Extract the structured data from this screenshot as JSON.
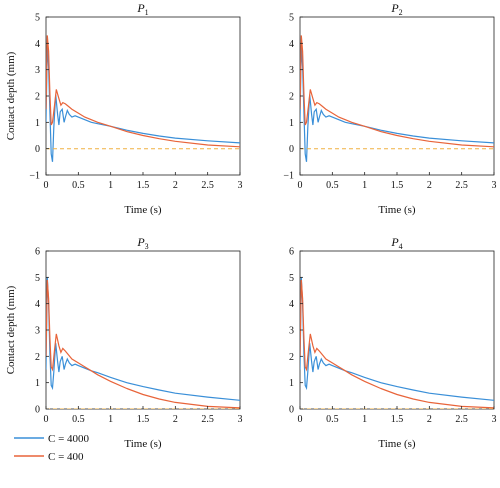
{
  "colors": {
    "blue": "#3a8fd8",
    "orange": "#e8643a",
    "zero_line": "#f0b040"
  },
  "legend": [
    {
      "label": "C = 4000",
      "color": "#3a8fd8"
    },
    {
      "label": "C = 400",
      "color": "#e8643a"
    }
  ],
  "chart_data": [
    {
      "type": "line",
      "title": "P",
      "title_sub": "1",
      "xlabel": "Time (s)",
      "ylabel": "Contact depth (mm)",
      "xlim": [
        0,
        3
      ],
      "ylim": [
        -1,
        5
      ],
      "xticks": [
        0,
        0.5,
        1,
        1.5,
        2,
        2.5,
        3
      ],
      "xtick_labels": [
        "0",
        "0.5",
        "1",
        "1.5",
        "2",
        "2.5",
        "3"
      ],
      "yticks": [
        -1,
        0,
        1,
        2,
        3,
        4,
        5
      ],
      "ytick_labels": [
        "−1",
        "0",
        "1",
        "2",
        "3",
        "4",
        "5"
      ],
      "grid": false,
      "series": [
        {
          "name": "C = 4000",
          "color": "#3a8fd8",
          "x": [
            0,
            0.02,
            0.04,
            0.06,
            0.08,
            0.1,
            0.12,
            0.15,
            0.18,
            0.2,
            0.22,
            0.25,
            0.28,
            0.3,
            0.33,
            0.36,
            0.4,
            0.45,
            0.5,
            0.6,
            0.7,
            0.8,
            1.0,
            1.25,
            1.5,
            1.75,
            2.0,
            2.5,
            3.0
          ],
          "y": [
            1.0,
            3.9,
            3.1,
            1.4,
            -0.2,
            -0.5,
            0.8,
            2.05,
            1.3,
            0.9,
            1.4,
            1.5,
            1.0,
            1.2,
            1.45,
            1.3,
            1.2,
            1.25,
            1.2,
            1.1,
            1.0,
            0.95,
            0.85,
            0.7,
            0.58,
            0.48,
            0.4,
            0.3,
            0.22
          ]
        },
        {
          "name": "C = 400",
          "color": "#e8643a",
          "x": [
            0,
            0.02,
            0.04,
            0.06,
            0.08,
            0.1,
            0.13,
            0.16,
            0.2,
            0.23,
            0.26,
            0.3,
            0.35,
            0.4,
            0.5,
            0.6,
            0.7,
            0.8,
            1.0,
            1.25,
            1.5,
            1.75,
            2.0,
            2.5,
            3.0
          ],
          "y": [
            1.5,
            4.3,
            3.7,
            2.1,
            0.9,
            1.0,
            1.6,
            2.25,
            1.9,
            1.65,
            1.75,
            1.7,
            1.6,
            1.5,
            1.35,
            1.2,
            1.1,
            1.0,
            0.85,
            0.65,
            0.5,
            0.38,
            0.28,
            0.14,
            0.07
          ]
        },
        {
          "name": "",
          "color": "#f0b040",
          "dashed": true,
          "x": [
            0,
            3
          ],
          "y": [
            0,
            0
          ]
        }
      ]
    },
    {
      "type": "line",
      "title": "P",
      "title_sub": "2",
      "xlabel": "Time (s)",
      "ylabel": "",
      "xlim": [
        0,
        3
      ],
      "ylim": [
        -1,
        5
      ],
      "xticks": [
        0,
        0.5,
        1,
        1.5,
        2,
        2.5,
        3
      ],
      "xtick_labels": [
        "0",
        "0.5",
        "1",
        "1.5",
        "2",
        "2.5",
        "3"
      ],
      "yticks": [
        -1,
        0,
        1,
        2,
        3,
        4,
        5
      ],
      "ytick_labels": [
        "−1",
        "0",
        "1",
        "2",
        "3",
        "4",
        "5"
      ],
      "grid": false,
      "series": [
        {
          "name": "C = 4000",
          "color": "#3a8fd8",
          "x": [
            0,
            0.02,
            0.04,
            0.06,
            0.08,
            0.1,
            0.12,
            0.15,
            0.18,
            0.2,
            0.22,
            0.25,
            0.28,
            0.3,
            0.33,
            0.36,
            0.4,
            0.45,
            0.5,
            0.6,
            0.7,
            0.8,
            1.0,
            1.25,
            1.5,
            1.75,
            2.0,
            2.5,
            3.0
          ],
          "y": [
            1.0,
            3.9,
            3.1,
            1.4,
            -0.2,
            -0.5,
            0.8,
            2.05,
            1.3,
            0.9,
            1.4,
            1.5,
            1.0,
            1.2,
            1.45,
            1.3,
            1.2,
            1.25,
            1.2,
            1.1,
            1.0,
            0.95,
            0.85,
            0.7,
            0.58,
            0.48,
            0.4,
            0.3,
            0.22
          ]
        },
        {
          "name": "C = 400",
          "color": "#e8643a",
          "x": [
            0,
            0.02,
            0.04,
            0.06,
            0.08,
            0.1,
            0.13,
            0.16,
            0.2,
            0.23,
            0.26,
            0.3,
            0.35,
            0.4,
            0.5,
            0.6,
            0.7,
            0.8,
            1.0,
            1.25,
            1.5,
            1.75,
            2.0,
            2.5,
            3.0
          ],
          "y": [
            1.5,
            4.3,
            3.7,
            2.1,
            0.9,
            1.0,
            1.6,
            2.25,
            1.9,
            1.65,
            1.75,
            1.7,
            1.6,
            1.5,
            1.35,
            1.2,
            1.1,
            1.0,
            0.85,
            0.65,
            0.5,
            0.38,
            0.28,
            0.14,
            0.07
          ]
        },
        {
          "name": "",
          "color": "#f0b040",
          "dashed": true,
          "x": [
            0,
            3
          ],
          "y": [
            0,
            0
          ]
        }
      ]
    },
    {
      "type": "line",
      "title": "P",
      "title_sub": "3",
      "xlabel": "Time (s)",
      "ylabel": "Contact depth (mm)",
      "xlim": [
        0,
        3
      ],
      "ylim": [
        0,
        6
      ],
      "xticks": [
        0,
        0.5,
        1,
        1.5,
        2,
        2.5,
        3
      ],
      "xtick_labels": [
        "0",
        "0.5",
        "1",
        "1.5",
        "2",
        "2.5",
        "3"
      ],
      "yticks": [
        0,
        1,
        2,
        3,
        4,
        5,
        6
      ],
      "ytick_labels": [
        "0",
        "1",
        "2",
        "3",
        "4",
        "5",
        "6"
      ],
      "grid": false,
      "series": [
        {
          "name": "C = 4000",
          "color": "#3a8fd8",
          "x": [
            0,
            0.02,
            0.04,
            0.06,
            0.08,
            0.1,
            0.12,
            0.15,
            0.18,
            0.2,
            0.22,
            0.25,
            0.28,
            0.3,
            0.33,
            0.36,
            0.4,
            0.45,
            0.5,
            0.6,
            0.7,
            0.8,
            1.0,
            1.25,
            1.5,
            1.75,
            2.0,
            2.5,
            3.0
          ],
          "y": [
            1.5,
            5.0,
            4.0,
            2.1,
            0.9,
            0.8,
            1.4,
            2.5,
            1.8,
            1.4,
            1.8,
            2.0,
            1.5,
            1.7,
            1.9,
            1.75,
            1.65,
            1.7,
            1.65,
            1.55,
            1.45,
            1.38,
            1.2,
            1.0,
            0.85,
            0.72,
            0.6,
            0.45,
            0.33
          ]
        },
        {
          "name": "C = 400",
          "color": "#e8643a",
          "x": [
            0,
            0.02,
            0.04,
            0.06,
            0.08,
            0.1,
            0.13,
            0.16,
            0.2,
            0.23,
            0.26,
            0.3,
            0.35,
            0.4,
            0.5,
            0.6,
            0.7,
            0.8,
            1.0,
            1.25,
            1.5,
            1.75,
            2.0,
            2.5,
            3.0
          ],
          "y": [
            2.0,
            4.9,
            4.2,
            2.7,
            1.6,
            1.5,
            2.2,
            2.85,
            2.4,
            2.15,
            2.3,
            2.2,
            2.05,
            1.9,
            1.75,
            1.6,
            1.45,
            1.3,
            1.05,
            0.78,
            0.55,
            0.38,
            0.25,
            0.1,
            0.04
          ]
        },
        {
          "name": "",
          "color": "#f0b040",
          "dashed": true,
          "x": [
            0,
            3
          ],
          "y": [
            0,
            0
          ]
        }
      ]
    },
    {
      "type": "line",
      "title": "P",
      "title_sub": "4",
      "xlabel": "Time (s)",
      "ylabel": "",
      "xlim": [
        0,
        3
      ],
      "ylim": [
        0,
        6
      ],
      "xticks": [
        0,
        0.5,
        1,
        1.5,
        2,
        2.5,
        3
      ],
      "xtick_labels": [
        "0",
        "0.5",
        "1",
        "1.5",
        "2",
        "2.5",
        "3"
      ],
      "yticks": [
        0,
        1,
        2,
        3,
        4,
        5,
        6
      ],
      "ytick_labels": [
        "0",
        "1",
        "2",
        "3",
        "4",
        "5",
        "6"
      ],
      "grid": false,
      "series": [
        {
          "name": "C = 4000",
          "color": "#3a8fd8",
          "x": [
            0,
            0.02,
            0.04,
            0.06,
            0.08,
            0.1,
            0.12,
            0.15,
            0.18,
            0.2,
            0.22,
            0.25,
            0.28,
            0.3,
            0.33,
            0.36,
            0.4,
            0.45,
            0.5,
            0.6,
            0.7,
            0.8,
            1.0,
            1.25,
            1.5,
            1.75,
            2.0,
            2.5,
            3.0
          ],
          "y": [
            1.5,
            5.0,
            4.0,
            2.1,
            0.9,
            0.8,
            1.4,
            2.5,
            1.8,
            1.4,
            1.8,
            2.0,
            1.5,
            1.7,
            1.9,
            1.75,
            1.65,
            1.7,
            1.65,
            1.55,
            1.45,
            1.38,
            1.2,
            1.0,
            0.85,
            0.72,
            0.6,
            0.45,
            0.33
          ]
        },
        {
          "name": "C = 400",
          "color": "#e8643a",
          "x": [
            0,
            0.02,
            0.04,
            0.06,
            0.08,
            0.1,
            0.13,
            0.16,
            0.2,
            0.23,
            0.26,
            0.3,
            0.35,
            0.4,
            0.5,
            0.6,
            0.7,
            0.8,
            1.0,
            1.25,
            1.5,
            1.75,
            2.0,
            2.5,
            3.0
          ],
          "y": [
            2.0,
            4.9,
            4.2,
            2.7,
            1.6,
            1.5,
            2.2,
            2.85,
            2.4,
            2.15,
            2.3,
            2.2,
            2.05,
            1.9,
            1.75,
            1.6,
            1.45,
            1.3,
            1.05,
            0.78,
            0.55,
            0.38,
            0.25,
            0.1,
            0.04
          ]
        },
        {
          "name": "",
          "color": "#f0b040",
          "dashed": true,
          "x": [
            0,
            3
          ],
          "y": [
            0,
            0
          ]
        }
      ]
    }
  ]
}
